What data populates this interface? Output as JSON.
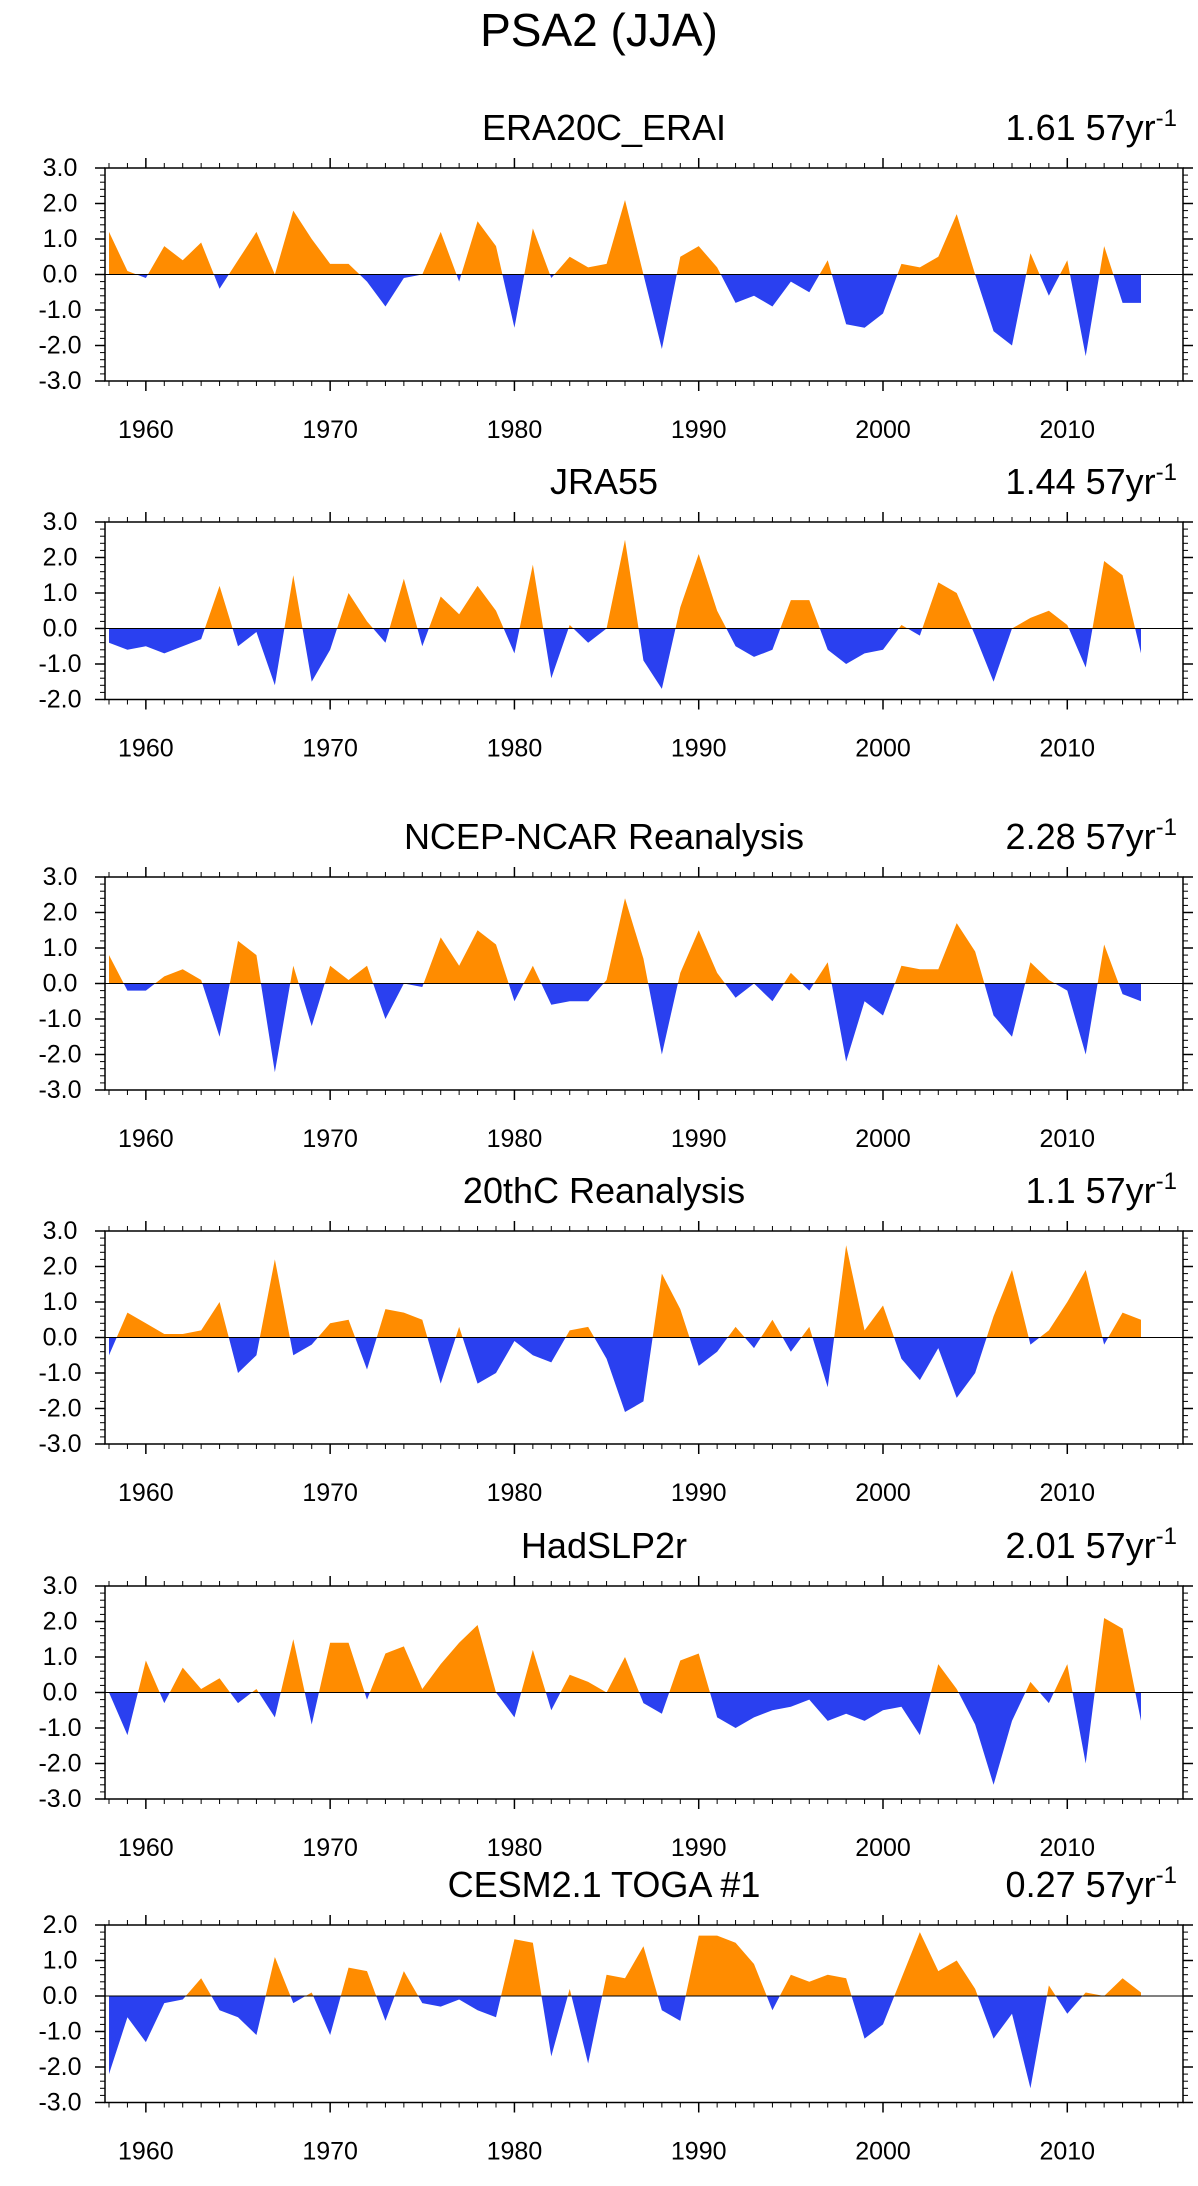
{
  "figure_title": "PSA2 (JJA)",
  "colors": {
    "positive": "#FF8C00",
    "negative": "#2A40F0",
    "axis": "#000000",
    "zero_line": "#000000"
  },
  "chart_data": [
    {
      "type": "area",
      "title": "ERA20C_ERAI",
      "stat_value": "1.61",
      "stat_unit": "57yr",
      "stat_exponent": "-1",
      "x": [
        1958,
        1959,
        1960,
        1961,
        1962,
        1963,
        1964,
        1965,
        1966,
        1967,
        1968,
        1969,
        1970,
        1971,
        1972,
        1973,
        1974,
        1975,
        1976,
        1977,
        1978,
        1979,
        1980,
        1981,
        1982,
        1983,
        1984,
        1985,
        1986,
        1987,
        1988,
        1989,
        1990,
        1991,
        1992,
        1993,
        1994,
        1995,
        1996,
        1997,
        1998,
        1999,
        2000,
        2001,
        2002,
        2003,
        2004,
        2005,
        2006,
        2007,
        2008,
        2009,
        2010,
        2011,
        2012,
        2013,
        2014
      ],
      "values": [
        1.2,
        0.1,
        -0.1,
        0.8,
        0.4,
        0.9,
        -0.4,
        0.4,
        1.2,
        0.0,
        1.8,
        1.0,
        0.3,
        0.3,
        -0.2,
        -0.9,
        -0.1,
        0.0,
        1.2,
        -0.2,
        1.5,
        0.8,
        -1.5,
        1.3,
        -0.1,
        0.5,
        0.2,
        0.3,
        2.1,
        0.0,
        -2.1,
        0.5,
        0.8,
        0.2,
        -0.8,
        -0.6,
        -0.9,
        -0.2,
        -0.5,
        0.4,
        -1.4,
        -1.5,
        -1.1,
        0.3,
        0.2,
        0.5,
        1.7,
        0.0,
        -1.6,
        -2.0,
        0.6,
        -0.6,
        0.4,
        -2.3,
        0.8,
        -0.8,
        -0.8
      ],
      "ylim": [
        -3.0,
        3.0
      ],
      "yticks": [
        "3.0",
        "2.0",
        "1.0",
        "0.0",
        "-1.0",
        "-2.0",
        "-3.0"
      ],
      "xlim": [
        1958,
        2014
      ],
      "xticks": [
        "1960",
        "1970",
        "1980",
        "1990",
        "2000",
        "2010"
      ]
    },
    {
      "type": "area",
      "title": "JRA55",
      "stat_value": "1.44",
      "stat_unit": "57yr",
      "stat_exponent": "-1",
      "x": [
        1958,
        1959,
        1960,
        1961,
        1962,
        1963,
        1964,
        1965,
        1966,
        1967,
        1968,
        1969,
        1970,
        1971,
        1972,
        1973,
        1974,
        1975,
        1976,
        1977,
        1978,
        1979,
        1980,
        1981,
        1982,
        1983,
        1984,
        1985,
        1986,
        1987,
        1988,
        1989,
        1990,
        1991,
        1992,
        1993,
        1994,
        1995,
        1996,
        1997,
        1998,
        1999,
        2000,
        2001,
        2002,
        2003,
        2004,
        2005,
        2006,
        2007,
        2008,
        2009,
        2010,
        2011,
        2012,
        2013,
        2014
      ],
      "values": [
        -0.4,
        -0.6,
        -0.5,
        -0.7,
        -0.5,
        -0.3,
        1.2,
        -0.5,
        -0.1,
        -1.6,
        1.5,
        -1.5,
        -0.6,
        1.0,
        0.2,
        -0.4,
        1.4,
        -0.5,
        0.9,
        0.4,
        1.2,
        0.5,
        -0.7,
        1.8,
        -1.4,
        0.1,
        -0.4,
        0.0,
        2.5,
        -0.9,
        -1.7,
        0.6,
        2.1,
        0.5,
        -0.5,
        -0.8,
        -0.6,
        0.8,
        0.8,
        -0.6,
        -1.0,
        -0.7,
        -0.6,
        0.1,
        -0.2,
        1.3,
        1.0,
        -0.2,
        -1.5,
        0.0,
        0.3,
        0.5,
        0.1,
        -1.1,
        1.9,
        1.5,
        -0.7
      ],
      "ylim": [
        -2.0,
        3.0
      ],
      "yticks": [
        "3.0",
        "2.0",
        "1.0",
        "0.0",
        "-1.0",
        "-2.0"
      ],
      "xlim": [
        1958,
        2014
      ],
      "xticks": [
        "1960",
        "1970",
        "1980",
        "1990",
        "2000",
        "2010"
      ]
    },
    {
      "type": "area",
      "title": "NCEP-NCAR Reanalysis",
      "stat_value": "2.28",
      "stat_unit": "57yr",
      "stat_exponent": "-1",
      "x": [
        1958,
        1959,
        1960,
        1961,
        1962,
        1963,
        1964,
        1965,
        1966,
        1967,
        1968,
        1969,
        1970,
        1971,
        1972,
        1973,
        1974,
        1975,
        1976,
        1977,
        1978,
        1979,
        1980,
        1981,
        1982,
        1983,
        1984,
        1985,
        1986,
        1987,
        1988,
        1989,
        1990,
        1991,
        1992,
        1993,
        1994,
        1995,
        1996,
        1997,
        1998,
        1999,
        2000,
        2001,
        2002,
        2003,
        2004,
        2005,
        2006,
        2007,
        2008,
        2009,
        2010,
        2011,
        2012,
        2013,
        2014
      ],
      "values": [
        0.8,
        -0.2,
        -0.2,
        0.2,
        0.4,
        0.1,
        -1.5,
        1.2,
        0.8,
        -2.5,
        0.5,
        -1.2,
        0.5,
        0.1,
        0.5,
        -1.0,
        0.0,
        -0.1,
        1.3,
        0.5,
        1.5,
        1.1,
        -0.5,
        0.5,
        -0.6,
        -0.5,
        -0.5,
        0.1,
        2.4,
        0.7,
        -2.0,
        0.3,
        1.5,
        0.3,
        -0.4,
        0.0,
        -0.5,
        0.3,
        -0.2,
        0.6,
        -2.2,
        -0.5,
        -0.9,
        0.5,
        0.4,
        0.4,
        1.7,
        0.9,
        -0.9,
        -1.5,
        0.6,
        0.1,
        -0.2,
        -2.0,
        1.1,
        -0.3,
        -0.5
      ],
      "ylim": [
        -3.0,
        3.0
      ],
      "yticks": [
        "3.0",
        "2.0",
        "1.0",
        "0.0",
        "-1.0",
        "-2.0",
        "-3.0"
      ],
      "xlim": [
        1958,
        2014
      ],
      "xticks": [
        "1960",
        "1970",
        "1980",
        "1990",
        "2000",
        "2010"
      ]
    },
    {
      "type": "area",
      "title": "20thC Reanalysis",
      "stat_value": "1.1",
      "stat_unit": "57yr",
      "stat_exponent": "-1",
      "x": [
        1958,
        1959,
        1960,
        1961,
        1962,
        1963,
        1964,
        1965,
        1966,
        1967,
        1968,
        1969,
        1970,
        1971,
        1972,
        1973,
        1974,
        1975,
        1976,
        1977,
        1978,
        1979,
        1980,
        1981,
        1982,
        1983,
        1984,
        1985,
        1986,
        1987,
        1988,
        1989,
        1990,
        1991,
        1992,
        1993,
        1994,
        1995,
        1996,
        1997,
        1998,
        1999,
        2000,
        2001,
        2002,
        2003,
        2004,
        2005,
        2006,
        2007,
        2008,
        2009,
        2010,
        2011,
        2012,
        2013,
        2014
      ],
      "values": [
        -0.5,
        0.7,
        0.4,
        0.1,
        0.1,
        0.2,
        1.0,
        -1.0,
        -0.5,
        2.2,
        -0.5,
        -0.2,
        0.4,
        0.5,
        -0.9,
        0.8,
        0.7,
        0.5,
        -1.3,
        0.3,
        -1.3,
        -1.0,
        -0.1,
        -0.5,
        -0.7,
        0.2,
        0.3,
        -0.6,
        -2.1,
        -1.8,
        1.8,
        0.8,
        -0.8,
        -0.4,
        0.3,
        -0.3,
        0.5,
        -0.4,
        0.3,
        -1.4,
        2.6,
        0.2,
        0.9,
        -0.6,
        -1.2,
        -0.3,
        -1.7,
        -1.0,
        0.6,
        1.9,
        -0.2,
        0.2,
        1.0,
        1.9,
        -0.2,
        0.7,
        0.5
      ],
      "ylim": [
        -3.0,
        3.0
      ],
      "yticks": [
        "3.0",
        "2.0",
        "1.0",
        "0.0",
        "-1.0",
        "-2.0",
        "-3.0"
      ],
      "xlim": [
        1958,
        2014
      ],
      "xticks": [
        "1960",
        "1970",
        "1980",
        "1990",
        "2000",
        "2010"
      ]
    },
    {
      "type": "area",
      "title": "HadSLP2r",
      "stat_value": "2.01",
      "stat_unit": "57yr",
      "stat_exponent": "-1",
      "x": [
        1958,
        1959,
        1960,
        1961,
        1962,
        1963,
        1964,
        1965,
        1966,
        1967,
        1968,
        1969,
        1970,
        1971,
        1972,
        1973,
        1974,
        1975,
        1976,
        1977,
        1978,
        1979,
        1980,
        1981,
        1982,
        1983,
        1984,
        1985,
        1986,
        1987,
        1988,
        1989,
        1990,
        1991,
        1992,
        1993,
        1994,
        1995,
        1996,
        1997,
        1998,
        1999,
        2000,
        2001,
        2002,
        2003,
        2004,
        2005,
        2006,
        2007,
        2008,
        2009,
        2010,
        2011,
        2012,
        2013,
        2014
      ],
      "values": [
        0.0,
        -1.2,
        0.9,
        -0.3,
        0.7,
        0.1,
        0.4,
        -0.3,
        0.1,
        -0.7,
        1.5,
        -0.9,
        1.4,
        1.4,
        -0.2,
        1.1,
        1.3,
        0.1,
        0.8,
        1.4,
        1.9,
        0.0,
        -0.7,
        1.2,
        -0.5,
        0.5,
        0.3,
        0.0,
        1.0,
        -0.3,
        -0.6,
        0.9,
        1.1,
        -0.7,
        -1.0,
        -0.7,
        -0.5,
        -0.4,
        -0.2,
        -0.8,
        -0.6,
        -0.8,
        -0.5,
        -0.4,
        -1.2,
        0.8,
        0.1,
        -0.9,
        -2.6,
        -0.8,
        0.3,
        -0.3,
        0.8,
        -2.0,
        2.1,
        1.8,
        -0.8
      ],
      "ylim": [
        -3.0,
        3.0
      ],
      "yticks": [
        "3.0",
        "2.0",
        "1.0",
        "0.0",
        "-1.0",
        "-2.0",
        "-3.0"
      ],
      "xlim": [
        1958,
        2014
      ],
      "xticks": [
        "1960",
        "1970",
        "1980",
        "1990",
        "2000",
        "2010"
      ]
    },
    {
      "type": "area",
      "title": "CESM2.1 TOGA #1",
      "stat_value": "0.27",
      "stat_unit": "57yr",
      "stat_exponent": "-1",
      "x": [
        1958,
        1959,
        1960,
        1961,
        1962,
        1963,
        1964,
        1965,
        1966,
        1967,
        1968,
        1969,
        1970,
        1971,
        1972,
        1973,
        1974,
        1975,
        1976,
        1977,
        1978,
        1979,
        1980,
        1981,
        1982,
        1983,
        1984,
        1985,
        1986,
        1987,
        1988,
        1989,
        1990,
        1991,
        1992,
        1993,
        1994,
        1995,
        1996,
        1997,
        1998,
        1999,
        2000,
        2001,
        2002,
        2003,
        2004,
        2005,
        2006,
        2007,
        2008,
        2009,
        2010,
        2011,
        2012,
        2013,
        2014
      ],
      "values": [
        -2.2,
        -0.6,
        -1.3,
        -0.2,
        -0.1,
        0.5,
        -0.4,
        -0.6,
        -1.1,
        1.1,
        -0.2,
        0.1,
        -1.1,
        0.8,
        0.7,
        -0.7,
        0.7,
        -0.2,
        -0.3,
        -0.1,
        -0.4,
        -0.6,
        1.6,
        1.5,
        -1.7,
        0.2,
        -1.9,
        0.6,
        0.5,
        1.4,
        -0.4,
        -0.7,
        1.7,
        1.7,
        1.5,
        0.9,
        -0.4,
        0.6,
        0.4,
        0.6,
        0.5,
        -1.2,
        -0.8,
        0.5,
        1.8,
        0.7,
        1.0,
        0.2,
        -1.2,
        -0.5,
        -2.6,
        0.3,
        -0.5,
        0.1,
        0.0,
        0.5,
        0.1
      ],
      "ylim": [
        -3.0,
        2.0
      ],
      "yticks": [
        "2.0",
        "1.0",
        "0.0",
        "-1.0",
        "-2.0",
        "-3.0"
      ],
      "xlim": [
        1958,
        2014
      ],
      "xticks": [
        "1960",
        "1970",
        "1980",
        "1990",
        "2000",
        "2010"
      ]
    }
  ]
}
